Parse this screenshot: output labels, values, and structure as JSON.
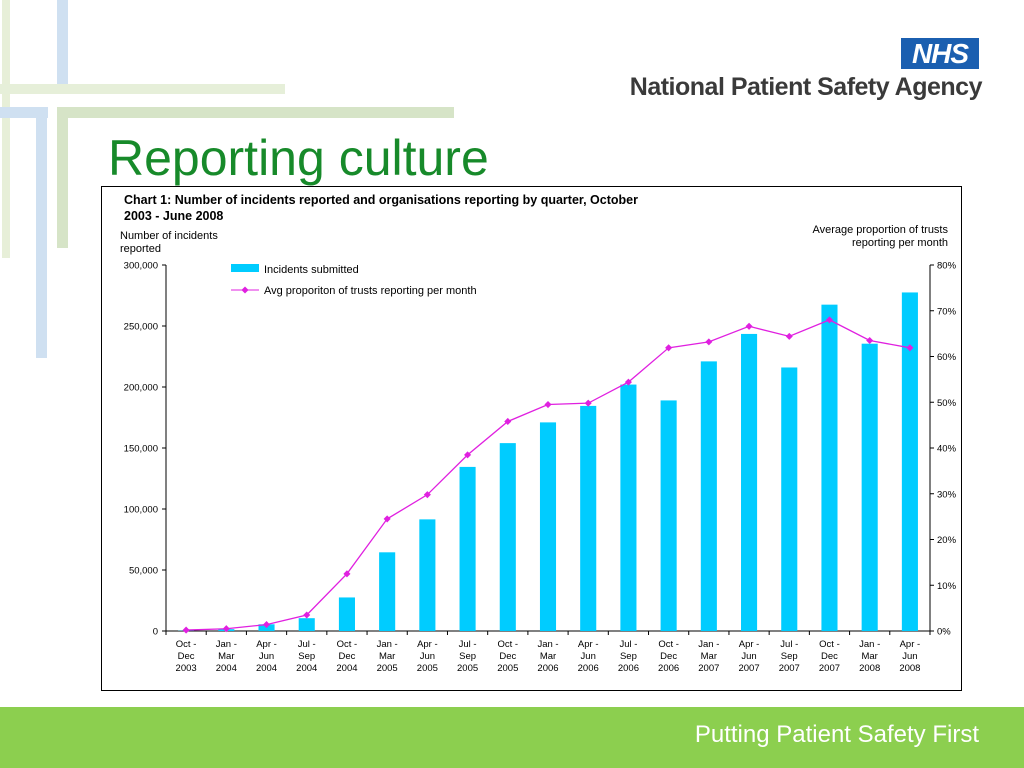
{
  "header": {
    "logo_text": "NHS",
    "agency_name": "National Patient Safety Agency"
  },
  "slide": {
    "title": "Reporting culture"
  },
  "footer": {
    "tagline": "Putting Patient Safety First"
  },
  "colors": {
    "title_green": "#178a2a",
    "bar_cyan": "#00ccff",
    "line_magenta": "#e020e0",
    "nhs_blue": "#1b5fb0",
    "footer_green": "#8ccf4f"
  },
  "chart_data": {
    "type": "bar",
    "title_line1": "Chart 1: Number of incidents reported and organisations reporting by quarter, October",
    "title_line2": "2003 - June 2008",
    "ylabel_left_line1": "Number of incidents",
    "ylabel_left_line2": "reported",
    "ylabel_right_line1": "Average proportion of trusts",
    "ylabel_right_line2": "reporting per month",
    "categories": [
      [
        "Oct -",
        "Dec",
        "2003"
      ],
      [
        "Jan -",
        "Mar",
        "2004"
      ],
      [
        "Apr -",
        "Jun",
        "2004"
      ],
      [
        "Jul -",
        "Sep",
        "2004"
      ],
      [
        "Oct -",
        "Dec",
        "2004"
      ],
      [
        "Jan -",
        "Mar",
        "2005"
      ],
      [
        "Apr -",
        "Jun",
        "2005"
      ],
      [
        "Jul -",
        "Sep",
        "2005"
      ],
      [
        "Oct -",
        "Dec",
        "2005"
      ],
      [
        "Jan -",
        "Mar",
        "2006"
      ],
      [
        "Apr -",
        "Jun",
        "2006"
      ],
      [
        "Jul -",
        "Sep",
        "2006"
      ],
      [
        "Oct -",
        "Dec",
        "2006"
      ],
      [
        "Jan -",
        "Mar",
        "2007"
      ],
      [
        "Apr -",
        "Jun",
        "2007"
      ],
      [
        "Jul -",
        "Sep",
        "2007"
      ],
      [
        "Oct -",
        "Dec",
        "2007"
      ],
      [
        "Jan -",
        "Mar",
        "2008"
      ],
      [
        "Apr -",
        "Jun",
        "2008"
      ]
    ],
    "series": [
      {
        "name": "Incidents submitted",
        "type": "bar",
        "axis": "left",
        "values": [
          200,
          1500,
          5500,
          10500,
          27500,
          64500,
          91500,
          134500,
          154000,
          171000,
          184500,
          202000,
          189000,
          221000,
          243500,
          216000,
          267500,
          235500,
          277500
        ]
      },
      {
        "name": "Avg proporiton of trusts reporting per month",
        "type": "line",
        "axis": "right",
        "values": [
          0.2,
          0.5,
          1.4,
          3.5,
          12.5,
          24.5,
          29.8,
          38.5,
          45.8,
          49.5,
          49.8,
          54.4,
          61.9,
          63.2,
          66.6,
          64.4,
          68.0,
          63.5,
          61.9
        ]
      }
    ],
    "ylim_left": [
      0,
      300000
    ],
    "yticks_left": [
      "0",
      "50,000",
      "100,000",
      "150,000",
      "200,000",
      "250,000",
      "300,000"
    ],
    "ylim_right": [
      0,
      80
    ],
    "yticks_right": [
      "0%",
      "10%",
      "20%",
      "30%",
      "40%",
      "50%",
      "60%",
      "70%",
      "80%"
    ],
    "legend_position": "top-left",
    "grid": false
  }
}
